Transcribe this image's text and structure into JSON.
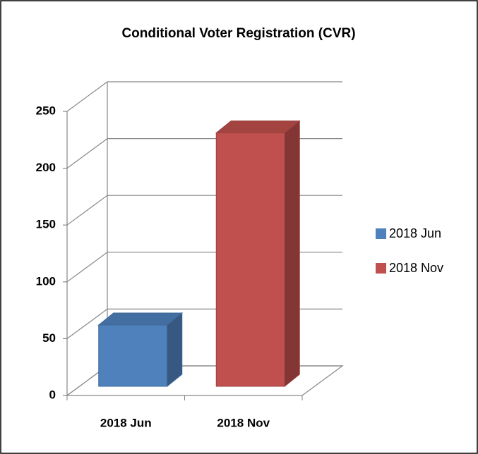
{
  "chart_data": {
    "type": "bar3d",
    "title": "Conditional Voter Registration (CVR)",
    "categories": [
      "2018 Jun",
      "2018 Nov"
    ],
    "series": [
      {
        "name": "2018 Jun",
        "color": "#4f81bd",
        "values": [
          54,
          null
        ]
      },
      {
        "name": "2018 Nov",
        "color": "#c0504d",
        "values": [
          null,
          223
        ]
      }
    ],
    "ylim": [
      0,
      250
    ],
    "yticks": [
      0,
      50,
      100,
      150,
      200,
      250
    ],
    "grid": true,
    "legend": "right"
  }
}
